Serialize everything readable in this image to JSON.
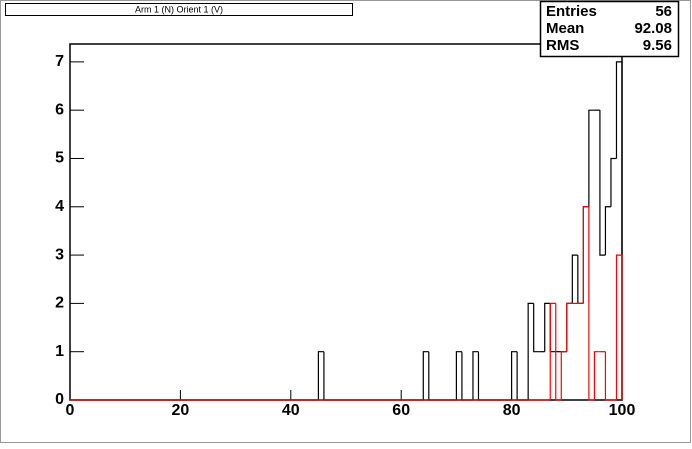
{
  "chart_data": {
    "type": "histogram",
    "title": "Arm 1 (N) Orient 1 (V)",
    "bins": [
      0,
      1,
      2,
      3,
      4,
      5,
      6,
      7,
      8,
      9,
      10,
      11,
      12,
      13,
      14,
      15,
      16,
      17,
      18,
      19,
      20,
      21,
      22,
      23,
      24,
      25,
      26,
      27,
      28,
      29,
      30,
      31,
      32,
      33,
      34,
      35,
      36,
      37,
      38,
      39,
      40,
      41,
      42,
      43,
      44,
      45,
      46,
      47,
      48,
      49,
      50,
      51,
      52,
      53,
      54,
      55,
      56,
      57,
      58,
      59,
      60,
      61,
      62,
      63,
      64,
      65,
      66,
      67,
      68,
      69,
      70,
      71,
      72,
      73,
      74,
      75,
      76,
      77,
      78,
      79,
      80,
      81,
      82,
      83,
      84,
      85,
      86,
      87,
      88,
      89,
      90,
      91,
      92,
      93,
      94,
      95,
      96,
      97,
      98,
      99,
      100
    ],
    "series": [
      {
        "color": "#000000",
        "values": [
          0,
          0,
          0,
          0,
          0,
          0,
          0,
          0,
          0,
          0,
          0,
          0,
          0,
          0,
          0,
          0,
          0,
          0,
          0,
          0,
          0,
          0,
          0,
          0,
          0,
          0,
          0,
          0,
          0,
          0,
          0,
          0,
          0,
          0,
          0,
          0,
          0,
          0,
          0,
          0,
          0,
          0,
          0,
          0,
          0,
          1,
          0,
          0,
          0,
          0,
          0,
          0,
          0,
          0,
          0,
          0,
          0,
          0,
          0,
          0,
          0,
          0,
          0,
          0,
          1,
          0,
          0,
          0,
          0,
          0,
          1,
          0,
          0,
          1,
          0,
          0,
          0,
          0,
          0,
          0,
          1,
          0,
          0,
          2,
          1,
          1,
          2,
          1,
          1,
          1,
          2,
          3,
          2,
          4,
          6,
          6,
          3,
          4,
          5,
          7
        ]
      },
      {
        "color": "#ff0000",
        "values": [
          0,
          0,
          0,
          0,
          0,
          0,
          0,
          0,
          0,
          0,
          0,
          0,
          0,
          0,
          0,
          0,
          0,
          0,
          0,
          0,
          0,
          0,
          0,
          0,
          0,
          0,
          0,
          0,
          0,
          0,
          0,
          0,
          0,
          0,
          0,
          0,
          0,
          0,
          0,
          0,
          0,
          0,
          0,
          0,
          0,
          0,
          0,
          0,
          0,
          0,
          0,
          0,
          0,
          0,
          0,
          0,
          0,
          0,
          0,
          0,
          0,
          0,
          0,
          0,
          0,
          0,
          0,
          0,
          0,
          0,
          0,
          0,
          0,
          0,
          0,
          0,
          0,
          0,
          0,
          0,
          0,
          0,
          0,
          0,
          0,
          0,
          0,
          2,
          0,
          1,
          2,
          2,
          2,
          4,
          0,
          1,
          1,
          0,
          0,
          3
        ]
      }
    ],
    "xlim": [
      0,
      100
    ],
    "xticks": [
      0,
      20,
      40,
      60,
      80,
      100
    ],
    "ylim": [
      0,
      7.37
    ],
    "yticks": [
      0,
      1,
      2,
      3,
      4,
      5,
      6,
      7
    ],
    "stats": {
      "labels": [
        "Entries",
        "Mean",
        "RMS"
      ],
      "values": [
        56,
        92.08,
        9.56
      ]
    }
  }
}
